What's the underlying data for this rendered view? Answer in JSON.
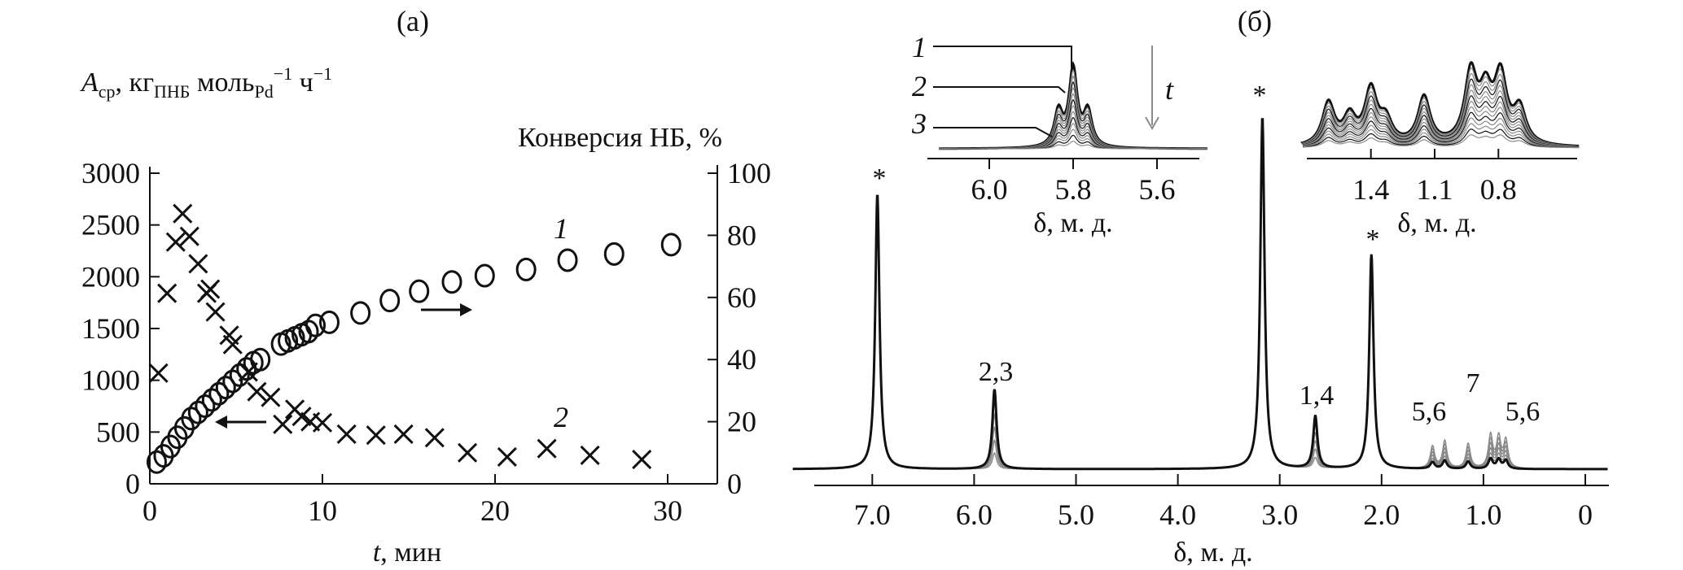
{
  "panel_a_label": "(a)",
  "panel_b_label": "(б)",
  "chart_data": [
    {
      "type": "scatter",
      "title": "(a)",
      "xlabel_italic": "t",
      "xlabel_rest": ", мин",
      "ylabel_left": {
        "A": "A",
        "sub1": "ср",
        "mid": ", кг",
        "sub2": "ПНБ",
        "mid2": " моль",
        "sub3": "Pd",
        "sup": "−1",
        "end": " ч",
        "sup2": "−1"
      },
      "ylabel_right": "Конверсия НБ, %",
      "xlim": [
        0,
        33
      ],
      "ylim_left": [
        0,
        3000
      ],
      "ylim_right": [
        0,
        100
      ],
      "xticks": [
        "0",
        "10",
        "20",
        "30"
      ],
      "yticks_left": [
        "0",
        "500",
        "1000",
        "1500",
        "2000",
        "2500",
        "3000"
      ],
      "yticks_right": [
        "0",
        "20",
        "40",
        "60",
        "80",
        "100"
      ],
      "series": [
        {
          "name": "1",
          "label": "1",
          "axis": "right",
          "marker": "circle",
          "x": [
            0.4,
            0.8,
            1.2,
            1.6,
            2.0,
            2.4,
            2.8,
            3.2,
            3.6,
            4.0,
            4.4,
            4.8,
            5.2,
            5.6,
            6.0,
            6.4,
            7.6,
            8.0,
            8.4,
            8.8,
            9.2,
            9.6,
            10.4,
            12.2,
            13.9,
            15.6,
            17.5,
            19.4,
            21.8,
            24.2,
            26.9,
            30.2
          ],
          "y": [
            7,
            9,
            12,
            15,
            18,
            21,
            23,
            25,
            27,
            29,
            31,
            33,
            35,
            37,
            39,
            40,
            45,
            46,
            47,
            48,
            49,
            51,
            52,
            55,
            59,
            62,
            65,
            67,
            69,
            72,
            74,
            77
          ]
        },
        {
          "name": "2",
          "label": "2",
          "axis": "left",
          "marker": "cross",
          "x": [
            0.5,
            1.0,
            1.5,
            1.9,
            2.3,
            2.8,
            3.3,
            3.5,
            3.8,
            4.6,
            4.8,
            5.7,
            6.2,
            7.0,
            7.7,
            8.4,
            8.8,
            9.3,
            10.0,
            11.4,
            13.1,
            14.7,
            16.5,
            18.4,
            20.7,
            23.0,
            25.5,
            28.5
          ],
          "y": [
            1070,
            1840,
            2335,
            2610,
            2390,
            2125,
            1840,
            1880,
            1660,
            1435,
            1345,
            1080,
            890,
            835,
            575,
            720,
            650,
            600,
            590,
            480,
            470,
            480,
            445,
            300,
            260,
            340,
            275,
            235
          ]
        }
      ]
    },
    {
      "type": "line",
      "title": "(б)",
      "xlabel": "δ, м. д.",
      "xlim": [
        7.8,
        -0.2
      ],
      "xticks": [
        "7.0",
        "6.0",
        "5.0",
        "4.0",
        "3.0",
        "2.0",
        "1.0",
        "0"
      ],
      "xtick_values": [
        7,
        6,
        5,
        4,
        3,
        2,
        1,
        0
      ],
      "trace_count": 6,
      "peaks": [
        {
          "delta": 6.95,
          "height": 100,
          "kind": "solvent"
        },
        {
          "delta": 5.8,
          "height": 29,
          "kind": "monomer"
        },
        {
          "delta": 3.17,
          "height": 128,
          "kind": "solvent"
        },
        {
          "delta": 2.65,
          "height": 19,
          "kind": "monomer"
        },
        {
          "delta": 2.1,
          "height": 78,
          "kind": "solvent"
        },
        {
          "delta": 1.5,
          "height": 8,
          "kind": "polymer"
        },
        {
          "delta": 1.38,
          "height": 10,
          "kind": "polymer"
        },
        {
          "delta": 1.15,
          "height": 9,
          "kind": "polymer"
        },
        {
          "delta": 0.93,
          "height": 12,
          "kind": "polymer"
        },
        {
          "delta": 0.85,
          "height": 11,
          "kind": "polymer"
        },
        {
          "delta": 0.78,
          "height": 10,
          "kind": "polymer"
        }
      ],
      "annotations": [
        "*",
        "2,3",
        "*",
        "1,4",
        "*",
        "5,6",
        "7",
        "5,6"
      ],
      "insets": [
        {
          "xticks": [
            "6.0",
            "5.8",
            "5.6"
          ],
          "xtick_values": [
            6.0,
            5.8,
            5.6
          ],
          "xlabel": "δ, м. д.",
          "curve_labels": [
            "1",
            "2",
            "3"
          ],
          "arrow_label": "t",
          "peaks": [
            {
              "delta": 5.8,
              "height": 100
            },
            {
              "delta": 5.835,
              "height": 45
            },
            {
              "delta": 5.765,
              "height": 45
            }
          ]
        },
        {
          "xticks": [
            "1.4",
            "1.1",
            "0.8"
          ],
          "xtick_values": [
            1.4,
            1.1,
            0.8
          ],
          "xlabel": "δ, м. д.",
          "peaks": [
            {
              "delta": 1.6,
              "height": 55
            },
            {
              "delta": 1.5,
              "height": 35
            },
            {
              "delta": 1.4,
              "height": 70
            },
            {
              "delta": 1.33,
              "height": 30
            },
            {
              "delta": 1.15,
              "height": 62
            },
            {
              "delta": 0.93,
              "height": 90
            },
            {
              "delta": 0.86,
              "height": 60
            },
            {
              "delta": 0.79,
              "height": 85
            },
            {
              "delta": 0.7,
              "height": 45
            }
          ]
        }
      ]
    }
  ],
  "colors": {
    "ink": "#111111",
    "gray": "#8a8a8a"
  }
}
